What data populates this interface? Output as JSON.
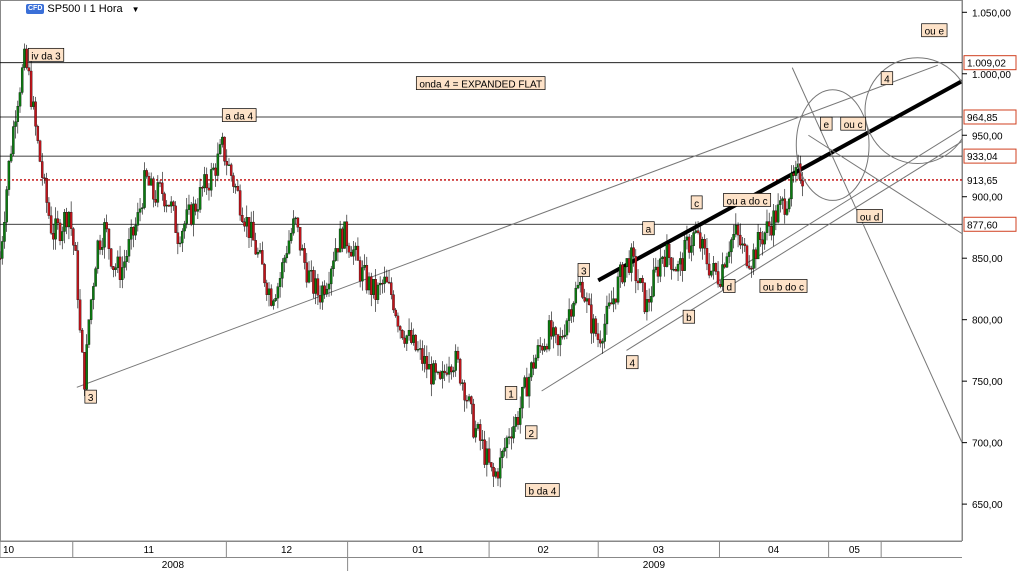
{
  "header": {
    "badge": "CFD",
    "symbol": "SP500 I 1 Hora",
    "dropdown_icon": "caret-down-icon"
  },
  "colors": {
    "candle_up": "#0b7a10",
    "candle_down": "#c0141b",
    "price_label_red": "#d04020",
    "label_bg": "#fde2c8",
    "dotted_line": "#c00000",
    "axis_bg": "#ffffff"
  },
  "chart_data": {
    "type": "candlestick",
    "title": "",
    "xlabel": "",
    "ylabel": "",
    "ylim": [
      620,
      1060
    ],
    "yticks": [
      "650,00",
      "700,00",
      "750,00",
      "800,00",
      "850,00",
      "900,00",
      "950,00",
      "1.000,00",
      "1.050,00"
    ],
    "ytick_values": [
      650,
      700,
      750,
      800,
      850,
      900,
      950,
      1000,
      1050
    ],
    "x_month_labels": [
      "10",
      "11",
      "12",
      "01",
      "02",
      "03",
      "04",
      "05"
    ],
    "x_year_labels": [
      "2008",
      "2009"
    ],
    "x_range": [
      0,
      238
    ],
    "month_starts": [
      0,
      18,
      56,
      86,
      121,
      148,
      178,
      205,
      218
    ],
    "price_levels": [
      {
        "value": 1009.02,
        "label": "1.009,02",
        "style": "red"
      },
      {
        "value": 964.85,
        "label": "964,85",
        "style": "red"
      },
      {
        "value": 933.04,
        "label": "933,04",
        "style": "red"
      },
      {
        "value": 913.65,
        "label": "913,65",
        "style": "dotted"
      },
      {
        "value": 877.6,
        "label": "877,60",
        "style": "red"
      }
    ],
    "price_path": [
      [
        0,
        850
      ],
      [
        2,
        920
      ],
      [
        4,
        975
      ],
      [
        6,
        1010
      ],
      [
        7,
        1000
      ],
      [
        9,
        950
      ],
      [
        11,
        905
      ],
      [
        13,
        870
      ],
      [
        15,
        875
      ],
      [
        17,
        890
      ],
      [
        19,
        840
      ],
      [
        20,
        775
      ],
      [
        21,
        750
      ],
      [
        22,
        800
      ],
      [
        24,
        860
      ],
      [
        26,
        875
      ],
      [
        28,
        845
      ],
      [
        30,
        840
      ],
      [
        32,
        860
      ],
      [
        34,
        880
      ],
      [
        36,
        915
      ],
      [
        38,
        900
      ],
      [
        40,
        905
      ],
      [
        42,
        895
      ],
      [
        44,
        870
      ],
      [
        46,
        880
      ],
      [
        48,
        890
      ],
      [
        50,
        905
      ],
      [
        52,
        915
      ],
      [
        54,
        930
      ],
      [
        55,
        940
      ],
      [
        57,
        920
      ],
      [
        59,
        900
      ],
      [
        61,
        880
      ],
      [
        63,
        860
      ],
      [
        65,
        840
      ],
      [
        67,
        820
      ],
      [
        69,
        830
      ],
      [
        71,
        860
      ],
      [
        73,
        880
      ],
      [
        75,
        850
      ],
      [
        77,
        830
      ],
      [
        79,
        820
      ],
      [
        81,
        835
      ],
      [
        83,
        860
      ],
      [
        85,
        870
      ],
      [
        87,
        860
      ],
      [
        89,
        840
      ],
      [
        91,
        830
      ],
      [
        93,
        820
      ],
      [
        95,
        830
      ],
      [
        97,
        820
      ],
      [
        99,
        795
      ],
      [
        101,
        785
      ],
      [
        103,
        775
      ],
      [
        105,
        765
      ],
      [
        107,
        755
      ],
      [
        109,
        745
      ],
      [
        111,
        770
      ],
      [
        113,
        765
      ],
      [
        115,
        745
      ],
      [
        117,
        715
      ],
      [
        119,
        700
      ],
      [
        121,
        680
      ],
      [
        122,
        670
      ],
      [
        124,
        685
      ],
      [
        126,
        710
      ],
      [
        128,
        720
      ],
      [
        130,
        745
      ],
      [
        132,
        765
      ],
      [
        134,
        780
      ],
      [
        136,
        790
      ],
      [
        138,
        775
      ],
      [
        140,
        800
      ],
      [
        142,
        820
      ],
      [
        144,
        830
      ],
      [
        146,
        800
      ],
      [
        148,
        785
      ],
      [
        150,
        800
      ],
      [
        152,
        820
      ],
      [
        154,
        840
      ],
      [
        156,
        850
      ],
      [
        158,
        830
      ],
      [
        160,
        810
      ],
      [
        162,
        835
      ],
      [
        164,
        855
      ],
      [
        166,
        850
      ],
      [
        168,
        840
      ],
      [
        170,
        860
      ],
      [
        172,
        870
      ],
      [
        174,
        855
      ],
      [
        176,
        840
      ],
      [
        178,
        835
      ],
      [
        180,
        860
      ],
      [
        182,
        870
      ],
      [
        184,
        855
      ],
      [
        186,
        850
      ],
      [
        188,
        865
      ],
      [
        190,
        875
      ],
      [
        192,
        885
      ],
      [
        194,
        895
      ],
      [
        196,
        910
      ],
      [
        198,
        920
      ],
      [
        199,
        915
      ]
    ],
    "annotations": [
      {
        "text": "iv da 3",
        "x": 7,
        "y": 1015
      },
      {
        "text": "a da 4",
        "x": 55,
        "y": 966
      },
      {
        "text": "3",
        "x": 21,
        "y": 737
      },
      {
        "text": "onda 4 = EXPANDED FLAT",
        "x": 103,
        "y": 992
      },
      {
        "text": "1",
        "x": 125,
        "y": 740
      },
      {
        "text": "2",
        "x": 130,
        "y": 708
      },
      {
        "text": "b da 4",
        "x": 130,
        "y": 661
      },
      {
        "text": "3",
        "x": 143,
        "y": 840
      },
      {
        "text": "4",
        "x": 155,
        "y": 765
      },
      {
        "text": "a",
        "x": 159,
        "y": 874
      },
      {
        "text": "c",
        "x": 171,
        "y": 895
      },
      {
        "text": "ou a do c",
        "x": 179,
        "y": 897
      },
      {
        "text": "b",
        "x": 169,
        "y": 802
      },
      {
        "text": "d",
        "x": 179,
        "y": 827
      },
      {
        "text": "ou b do c",
        "x": 188,
        "y": 827
      },
      {
        "text": "e",
        "x": 203,
        "y": 959
      },
      {
        "text": "ou c",
        "x": 208,
        "y": 959
      },
      {
        "text": "ou d",
        "x": 212,
        "y": 884
      },
      {
        "text": "4",
        "x": 218,
        "y": 996
      },
      {
        "text": "ou e",
        "x": 228,
        "y": 1035
      }
    ],
    "trendlines": [
      {
        "x1": 19,
        "y1": 745,
        "x2": 232,
        "y2": 1007,
        "width": 1
      },
      {
        "x1": 134,
        "y1": 742,
        "x2": 238,
        "y2": 955,
        "width": 1
      },
      {
        "x1": 155,
        "y1": 775,
        "x2": 238,
        "y2": 945,
        "width": 1
      },
      {
        "x1": 148,
        "y1": 832,
        "x2": 238,
        "y2": 994,
        "width": 4
      },
      {
        "x1": 196,
        "y1": 1005,
        "x2": 238,
        "y2": 700,
        "width": 1
      },
      {
        "x1": 200,
        "y1": 950,
        "x2": 238,
        "y2": 870,
        "width": 1
      }
    ],
    "ellipses": [
      {
        "cx": 206,
        "cy": 942,
        "rx": 9,
        "ry": 45
      },
      {
        "cx": 227,
        "cy": 970,
        "rx": 13,
        "ry": 43
      }
    ]
  }
}
